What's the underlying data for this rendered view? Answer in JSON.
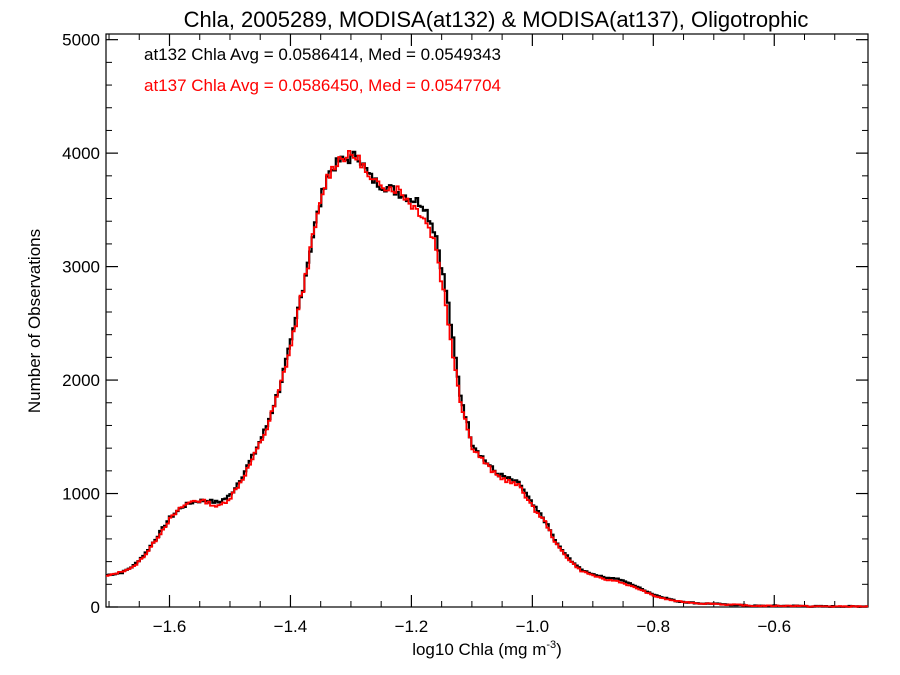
{
  "chart_data": {
    "type": "line",
    "style": "histogram-step",
    "title": "Chla, 2005289, MODISA(at132) & MODISA(at137), Oligotrophic",
    "xlabel": "log10 Chla (mg m",
    "xlabel_sup": "-3",
    "xlabel_tail": ")",
    "ylabel": "Number of Observations",
    "xlim": [
      -1.705,
      -0.445
    ],
    "ylim": [
      0,
      5050
    ],
    "xticks": [
      -1.6,
      -1.4,
      -1.2,
      -1.0,
      -0.8,
      -0.6
    ],
    "xtick_labels": [
      "−1.6",
      "−1.4",
      "−1.2",
      "−1.0",
      "−0.8",
      "−0.6"
    ],
    "yticks": [
      0,
      1000,
      2000,
      3000,
      4000,
      5000
    ],
    "ytick_labels": [
      "0",
      "1000",
      "2000",
      "3000",
      "4000",
      "5000"
    ],
    "annotations": [
      {
        "text": "at132 Chla Avg = 0.0586414, Med = 0.0549343",
        "color": "#000000"
      },
      {
        "text": "at137 Chla Avg = 0.0586450, Med = 0.0547704",
        "color": "#ff0000"
      }
    ],
    "series": [
      {
        "color": "#000000",
        "x": [
          -1.705,
          -1.68,
          -1.66,
          -1.64,
          -1.62,
          -1.6,
          -1.58,
          -1.56,
          -1.54,
          -1.52,
          -1.5,
          -1.48,
          -1.46,
          -1.44,
          -1.42,
          -1.4,
          -1.38,
          -1.36,
          -1.34,
          -1.32,
          -1.3,
          -1.29,
          -1.28,
          -1.27,
          -1.26,
          -1.25,
          -1.24,
          -1.22,
          -1.2,
          -1.18,
          -1.16,
          -1.14,
          -1.12,
          -1.1,
          -1.08,
          -1.06,
          -1.04,
          -1.02,
          -1.0,
          -0.98,
          -0.96,
          -0.94,
          -0.92,
          -0.9,
          -0.88,
          -0.86,
          -0.84,
          -0.82,
          -0.8,
          -0.78,
          -0.76,
          -0.74,
          -0.72,
          -0.7,
          -0.68,
          -0.66,
          -0.64,
          -0.62,
          -0.6,
          -0.58,
          -0.56,
          -0.54,
          -0.52,
          -0.5,
          -0.48,
          -0.46,
          -0.445
        ],
        "y": [
          280,
          300,
          360,
          470,
          620,
          780,
          880,
          930,
          940,
          920,
          980,
          1150,
          1350,
          1580,
          1900,
          2300,
          2800,
          3350,
          3800,
          3930,
          3950,
          4000,
          3900,
          3800,
          3750,
          3720,
          3700,
          3650,
          3600,
          3550,
          3300,
          2700,
          1900,
          1450,
          1300,
          1180,
          1130,
          1080,
          900,
          770,
          560,
          430,
          330,
          290,
          260,
          250,
          210,
          160,
          110,
          80,
          50,
          40,
          30,
          30,
          20,
          20,
          10,
          10,
          10,
          10,
          10,
          5,
          5,
          5,
          5,
          5,
          5
        ]
      },
      {
        "color": "#ff0000",
        "x": [
          -1.705,
          -1.68,
          -1.66,
          -1.64,
          -1.62,
          -1.6,
          -1.58,
          -1.56,
          -1.54,
          -1.52,
          -1.5,
          -1.48,
          -1.46,
          -1.44,
          -1.42,
          -1.4,
          -1.38,
          -1.36,
          -1.34,
          -1.32,
          -1.3,
          -1.29,
          -1.28,
          -1.27,
          -1.26,
          -1.25,
          -1.24,
          -1.22,
          -1.2,
          -1.18,
          -1.16,
          -1.14,
          -1.12,
          -1.1,
          -1.08,
          -1.06,
          -1.04,
          -1.02,
          -1.0,
          -0.98,
          -0.96,
          -0.94,
          -0.92,
          -0.9,
          -0.88,
          -0.86,
          -0.84,
          -0.82,
          -0.8,
          -0.78,
          -0.76,
          -0.74,
          -0.72,
          -0.7,
          -0.68,
          -0.66,
          -0.64,
          -0.62,
          -0.6,
          -0.58,
          -0.56,
          -0.54,
          -0.52,
          -0.5,
          -0.48,
          -0.46,
          -0.445
        ],
        "y": [
          270,
          310,
          350,
          460,
          610,
          770,
          880,
          940,
          930,
          880,
          960,
          1120,
          1330,
          1560,
          1880,
          2280,
          2780,
          3330,
          3780,
          3950,
          3980,
          3960,
          3900,
          3760,
          3730,
          3740,
          3700,
          3680,
          3550,
          3450,
          3200,
          2550,
          1850,
          1420,
          1280,
          1160,
          1110,
          1060,
          880,
          760,
          550,
          420,
          320,
          280,
          240,
          230,
          190,
          150,
          100,
          70,
          50,
          40,
          30,
          30,
          20,
          20,
          10,
          10,
          10,
          10,
          10,
          5,
          5,
          5,
          5,
          5,
          5
        ]
      }
    ]
  }
}
